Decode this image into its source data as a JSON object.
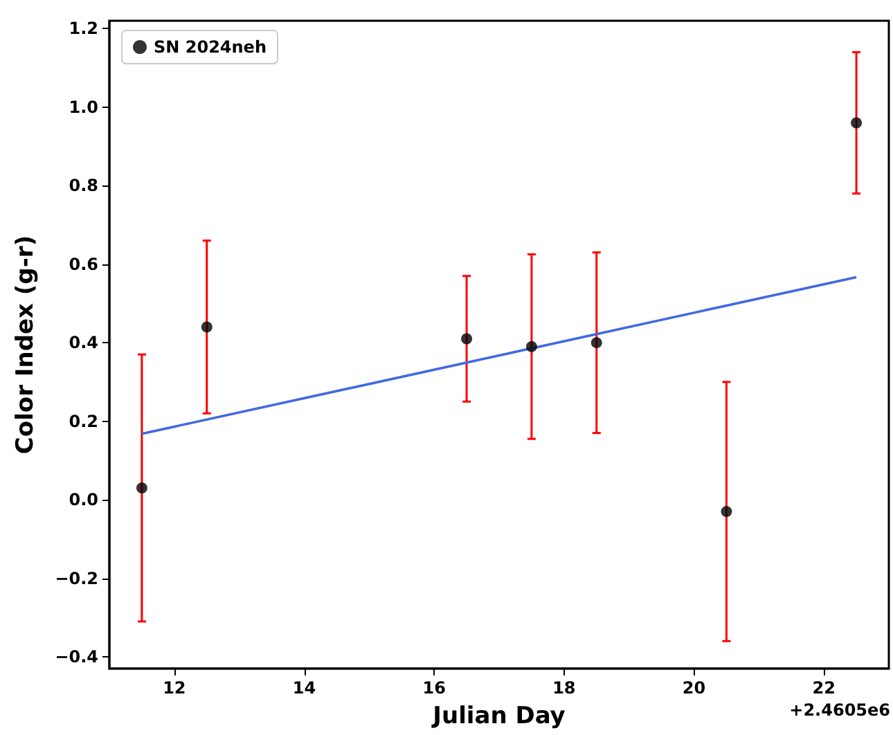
{
  "chart_data": {
    "type": "scatter",
    "xlabel": "Julian Day",
    "ylabel": "Color Index (g-r)",
    "annotations": [
      "+2.4605e6"
    ],
    "series": [
      {
        "name": "SN 2024neh",
        "color": "#000000",
        "x": [
          11.5,
          12.5,
          16.5,
          17.5,
          18.5,
          20.5,
          22.5
        ],
        "values": [
          0.03,
          0.44,
          0.41,
          0.39,
          0.4,
          -0.03,
          0.96
        ],
        "errors": [
          0.34,
          0.22,
          0.16,
          0.235,
          0.23,
          0.33,
          0.18
        ]
      },
      {
        "type": "line",
        "color": "#4169e1",
        "x": [
          11.5,
          22.5
        ],
        "values": [
          0.168,
          0.567
        ],
        "marker": "none"
      }
    ],
    "xlim": [
      11,
      23
    ],
    "xticks": [
      12,
      14,
      16,
      18,
      20,
      22
    ],
    "ylim": [
      -0.43,
      1.22
    ],
    "yticks": [
      {
        "value": -0.4,
        "label": "−0.4"
      },
      {
        "value": -0.2,
        "label": "−0.2"
      },
      {
        "value": 0,
        "label": "0.0"
      },
      0.2,
      0.4,
      0.6,
      0.8,
      {
        "value": 1,
        "label": "1.0"
      },
      1.2
    ],
    "marker": "circle",
    "legend": "top left",
    "grid": false
  }
}
